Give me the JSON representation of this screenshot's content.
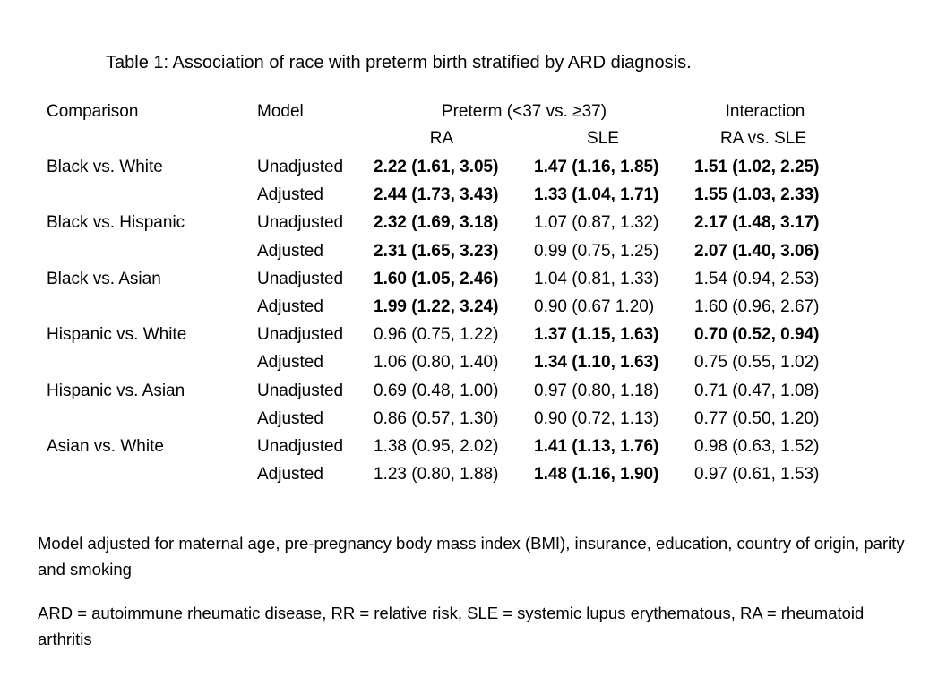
{
  "title": "Table 1: Association of race with preterm birth stratified by ARD diagnosis.",
  "headers": {
    "comparison": "Comparison",
    "model": "Model",
    "preterm": "Preterm (<37 vs. ≥37)",
    "interaction": "Interaction",
    "ra": "RA",
    "sle": "SLE",
    "ra_vs_sle": "RA vs. SLE"
  },
  "rows": [
    {
      "comparison": "Black vs. White",
      "model": "Unadjusted",
      "ra": {
        "text": "2.22 (1.61, 3.05)",
        "bold": true
      },
      "sle": {
        "text": "1.47 (1.16, 1.85)",
        "bold": true
      },
      "interaction": {
        "text": "1.51 (1.02, 2.25)",
        "bold": true
      }
    },
    {
      "comparison": "",
      "model": "Adjusted",
      "ra": {
        "text": "2.44 (1.73, 3.43)",
        "bold": true
      },
      "sle": {
        "text": "1.33 (1.04, 1.71)",
        "bold": true
      },
      "interaction": {
        "text": "1.55 (1.03, 2.33)",
        "bold": true
      }
    },
    {
      "comparison": "Black vs. Hispanic",
      "model": "Unadjusted",
      "ra": {
        "text": "2.32 (1.69, 3.18)",
        "bold": true
      },
      "sle": {
        "text": "1.07 (0.87, 1.32)",
        "bold": false
      },
      "interaction": {
        "text": "2.17 (1.48, 3.17)",
        "bold": true
      }
    },
    {
      "comparison": "",
      "model": "Adjusted",
      "ra": {
        "text": "2.31 (1.65, 3.23)",
        "bold": true
      },
      "sle": {
        "text": "0.99 (0.75, 1.25)",
        "bold": false
      },
      "interaction": {
        "text": "2.07 (1.40, 3.06)",
        "bold": true
      }
    },
    {
      "comparison": "Black vs. Asian",
      "model": "Unadjusted",
      "ra": {
        "text": "1.60 (1.05, 2.46)",
        "bold": true
      },
      "sle": {
        "text": "1.04 (0.81, 1.33)",
        "bold": false
      },
      "interaction": {
        "text": "1.54 (0.94, 2.53)",
        "bold": false
      }
    },
    {
      "comparison": "",
      "model": "Adjusted",
      "ra": {
        "text": "1.99 (1.22, 3.24)",
        "bold": true
      },
      "sle": {
        "text": "0.90 (0.67 1.20)",
        "bold": false
      },
      "interaction": {
        "text": "1.60 (0.96, 2.67)",
        "bold": false
      }
    },
    {
      "comparison": "Hispanic vs. White",
      "model": "Unadjusted",
      "ra": {
        "text": "0.96 (0.75, 1.22)",
        "bold": false
      },
      "sle": {
        "text": "1.37 (1.15, 1.63)",
        "bold": true
      },
      "interaction": {
        "text": "0.70 (0.52, 0.94)",
        "bold": true
      }
    },
    {
      "comparison": "",
      "model": "Adjusted",
      "ra": {
        "text": "1.06 (0.80, 1.40)",
        "bold": false
      },
      "sle": {
        "text": "1.34 (1.10, 1.63)",
        "bold": true
      },
      "interaction": {
        "text": "0.75 (0.55, 1.02)",
        "bold": false
      }
    },
    {
      "comparison": "Hispanic vs. Asian",
      "model": "Unadjusted",
      "ra": {
        "text": "0.69 (0.48, 1.00)",
        "bold": false
      },
      "sle": {
        "text": "0.97 (0.80, 1.18)",
        "bold": false
      },
      "interaction": {
        "text": "0.71 (0.47, 1.08)",
        "bold": false
      }
    },
    {
      "comparison": "",
      "model": "Adjusted",
      "ra": {
        "text": "0.86 (0.57, 1.30)",
        "bold": false
      },
      "sle": {
        "text": "0.90 (0.72, 1.13)",
        "bold": false
      },
      "interaction": {
        "text": "0.77 (0.50, 1.20)",
        "bold": false
      }
    },
    {
      "comparison": "Asian vs. White",
      "model": "Unadjusted",
      "ra": {
        "text": "1.38 (0.95, 2.02)",
        "bold": false
      },
      "sle": {
        "text": "1.41 (1.13, 1.76)",
        "bold": true
      },
      "interaction": {
        "text": "0.98 (0.63, 1.52)",
        "bold": false
      }
    },
    {
      "comparison": "",
      "model": "Adjusted",
      "ra": {
        "text": "1.23 (0.80, 1.88)",
        "bold": false
      },
      "sle": {
        "text": "1.48 (1.16, 1.90)",
        "bold": true
      },
      "interaction": {
        "text": "0.97 (0.61, 1.53)",
        "bold": false
      }
    }
  ],
  "notes": [
    "Model adjusted for maternal age, pre-pregnancy body mass index (BMI), insurance, education, country of origin, parity and smoking",
    "ARD = autoimmune rheumatic disease, RR = relative risk, SLE = systemic lupus erythematous, RA = rheumatoid arthritis"
  ]
}
